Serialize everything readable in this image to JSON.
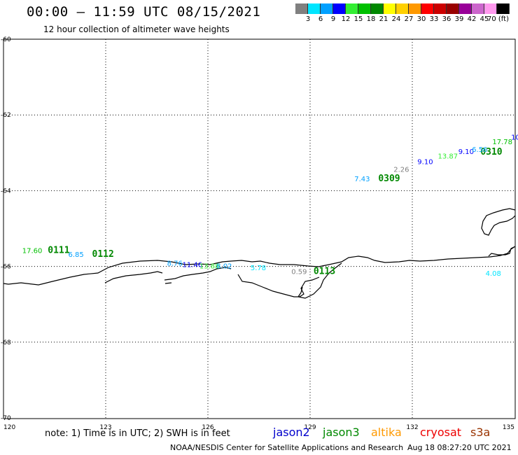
{
  "header": {
    "title": "00:00 – 11:59 UTC 08/15/2021",
    "subtitle": "12 hour collection of altimeter wave heights"
  },
  "color_scale": {
    "labels": [
      "3",
      "6",
      "9",
      "12",
      "15",
      "18",
      "21",
      "24",
      "27",
      "30",
      "33",
      "36",
      "39",
      "42",
      "45",
      "70 (ft)"
    ],
    "colors": [
      "#808080",
      "#00e5ff",
      "#00a0ff",
      "#0000ff",
      "#33ee33",
      "#00c000",
      "#008800",
      "#ffff00",
      "#ffd000",
      "#ff9900",
      "#ff0000",
      "#cc0000",
      "#990000",
      "#990099",
      "#cc66cc",
      "#ff99ee",
      "#000000"
    ]
  },
  "map": {
    "lat_labels": [
      "-60",
      "-62",
      "-64",
      "-66",
      "-68",
      "-70"
    ],
    "lon_labels": [
      "120",
      "123",
      "126",
      "129",
      "132",
      "135"
    ],
    "pass_labels": [
      {
        "text": "0111",
        "color": "#008800",
        "lon": 121.3,
        "lat": -65.65
      },
      {
        "text": "0112",
        "color": "#008800",
        "lon": 122.6,
        "lat": -65.75
      },
      {
        "text": "0113",
        "color": "#008800",
        "lon": 129.1,
        "lat": -66.2
      },
      {
        "text": "0309",
        "color": "#008800",
        "lon": 131.0,
        "lat": -63.75
      },
      {
        "text": "0310",
        "color": "#008800",
        "lon": 134.0,
        "lat": -63.05
      }
    ],
    "wave_heights": [
      {
        "text": "17.60",
        "color": "#00c000",
        "lon": 120.55,
        "lat": -65.65
      },
      {
        "text": "6.85",
        "color": "#00a0ff",
        "lon": 121.9,
        "lat": -65.75
      },
      {
        "text": "8.76",
        "color": "#00a0ff",
        "lon": 124.8,
        "lat": -65.98
      },
      {
        "text": "11.46",
        "color": "#0000ff",
        "lon": 125.25,
        "lat": -66.02
      },
      {
        "text": "13.88",
        "color": "#33ee33",
        "lon": 125.75,
        "lat": -66.05
      },
      {
        "text": "8.02",
        "color": "#00a0ff",
        "lon": 126.25,
        "lat": -66.05
      },
      {
        "text": "5.78",
        "color": "#00e5ff",
        "lon": 127.25,
        "lat": -66.1
      },
      {
        "text": "0.59",
        "color": "#808080",
        "lon": 128.45,
        "lat": -66.2
      },
      {
        "text": "7.43",
        "color": "#00a0ff",
        "lon": 130.3,
        "lat": -63.75
      },
      {
        "text": "2.26",
        "color": "#808080",
        "lon": 131.45,
        "lat": -63.5
      },
      {
        "text": "9.10",
        "color": "#0000ff",
        "lon": 132.15,
        "lat": -63.3
      },
      {
        "text": "13.87",
        "color": "#33ee33",
        "lon": 132.75,
        "lat": -63.15
      },
      {
        "text": "9.10",
        "color": "#0000ff",
        "lon": 133.35,
        "lat": -63.03
      },
      {
        "text": "6.56",
        "color": "#00a0ff",
        "lon": 133.75,
        "lat": -62.98
      },
      {
        "text": "17.78",
        "color": "#00c000",
        "lon": 134.35,
        "lat": -62.77
      },
      {
        "text": "10",
        "color": "#0000ff",
        "lon": 134.9,
        "lat": -62.65
      },
      {
        "text": "4.08",
        "color": "#00e5ff",
        "lon": 134.15,
        "lat": -66.25
      }
    ]
  },
  "note": "note:  1) Time is in UTC;  2) SWH is in feet",
  "satellites": [
    {
      "name": "jason2",
      "color": "#0000cc"
    },
    {
      "name": "jason3",
      "color": "#008800"
    },
    {
      "name": "altika",
      "color": "#ff9900"
    },
    {
      "name": "cryosat",
      "color": "#ee0000"
    },
    {
      "name": "s3a",
      "color": "#993300"
    }
  ],
  "footer": {
    "credit": "NOAA/NESDIS Center for Satellite Applications and Research",
    "timestamp": "Aug 18 08:27:20 UTC 2021"
  }
}
